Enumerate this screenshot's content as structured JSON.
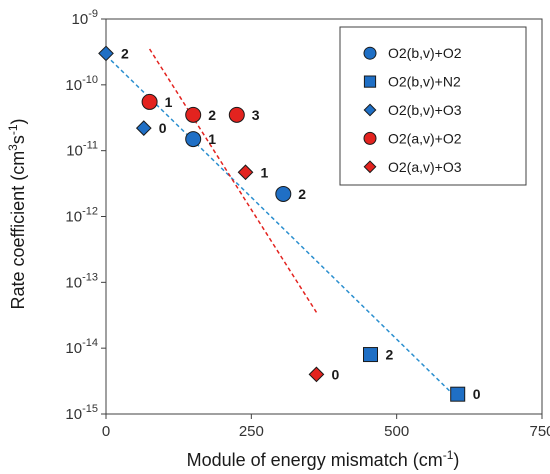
{
  "chart_data": {
    "type": "scatter",
    "xlabel": {
      "main": "Module of energy mismatch (cm",
      "sup": "-1",
      "tail": ")"
    },
    "ylabel": {
      "main": "Rate coefficient  (cm",
      "sup1": "3",
      "mid": "s",
      "sup2": "-1",
      "tail": ")"
    },
    "xlim": [
      0,
      750
    ],
    "ylim": [
      -15,
      -9
    ],
    "y_scale": "log10",
    "x_ticks": [
      {
        "value": 0,
        "label": "0"
      },
      {
        "value": 250,
        "label": "250"
      },
      {
        "value": 500,
        "label": "500"
      },
      {
        "value": 750,
        "label": "750"
      }
    ],
    "y_ticks": [
      {
        "exp": -9,
        "base": "10",
        "sup": "-9"
      },
      {
        "exp": -10,
        "base": "10",
        "sup": "-10"
      },
      {
        "exp": -11,
        "base": "10",
        "sup": "-11"
      },
      {
        "exp": -12,
        "base": "10",
        "sup": "-12"
      },
      {
        "exp": -13,
        "base": "10",
        "sup": "-13"
      },
      {
        "exp": -14,
        "base": "10",
        "sup": "-14"
      },
      {
        "exp": -15,
        "base": "10",
        "sup": "-15"
      }
    ],
    "series": [
      {
        "name": "O2(b,v)+O2",
        "marker": "circle",
        "color": "#1f6fc5",
        "points": [
          {
            "x": 150,
            "y": 1.5e-11,
            "label": "1"
          },
          {
            "x": 305,
            "y": 2.2e-12,
            "label": "2"
          }
        ]
      },
      {
        "name": "O2(b,v)+N2",
        "marker": "square",
        "color": "#1f6fc5",
        "points": [
          {
            "x": 455,
            "y": 8e-15,
            "label": "2"
          },
          {
            "x": 605,
            "y": 2e-15,
            "label": "0"
          }
        ]
      },
      {
        "name": "O2(b,v)+O3",
        "marker": "diamond",
        "color": "#1f6fc5",
        "points": [
          {
            "x": 0,
            "y": 3e-10,
            "label": "2"
          },
          {
            "x": 65,
            "y": 2.2e-11,
            "label": "0"
          }
        ]
      },
      {
        "name": "O2(a,v)+O2",
        "marker": "circle",
        "color": "#e3231f",
        "points": [
          {
            "x": 75,
            "y": 5.5e-11,
            "label": "1"
          },
          {
            "x": 150,
            "y": 3.5e-11,
            "label": "2"
          },
          {
            "x": 225,
            "y": 3.5e-11,
            "label": "3"
          }
        ]
      },
      {
        "name": "O2(a,v)+O3",
        "marker": "diamond",
        "color": "#e3231f",
        "points": [
          {
            "x": 240,
            "y": 4.7e-12,
            "label": "1"
          },
          {
            "x": 362,
            "y": 4e-15,
            "label": "0"
          }
        ]
      }
    ],
    "trend_lines": [
      {
        "color": "#2b8fcf",
        "style": "dashed",
        "from": {
          "x": 0,
          "y": 2.8e-10
        },
        "to": {
          "x": 605,
          "y": 1.7e-15
        }
      },
      {
        "color": "#e3231f",
        "style": "dashed",
        "from": {
          "x": 75,
          "y": 3.5e-10
        },
        "to": {
          "x": 362,
          "y": 3.5e-14
        }
      }
    ],
    "legend_position": "top-right",
    "grid": false
  }
}
